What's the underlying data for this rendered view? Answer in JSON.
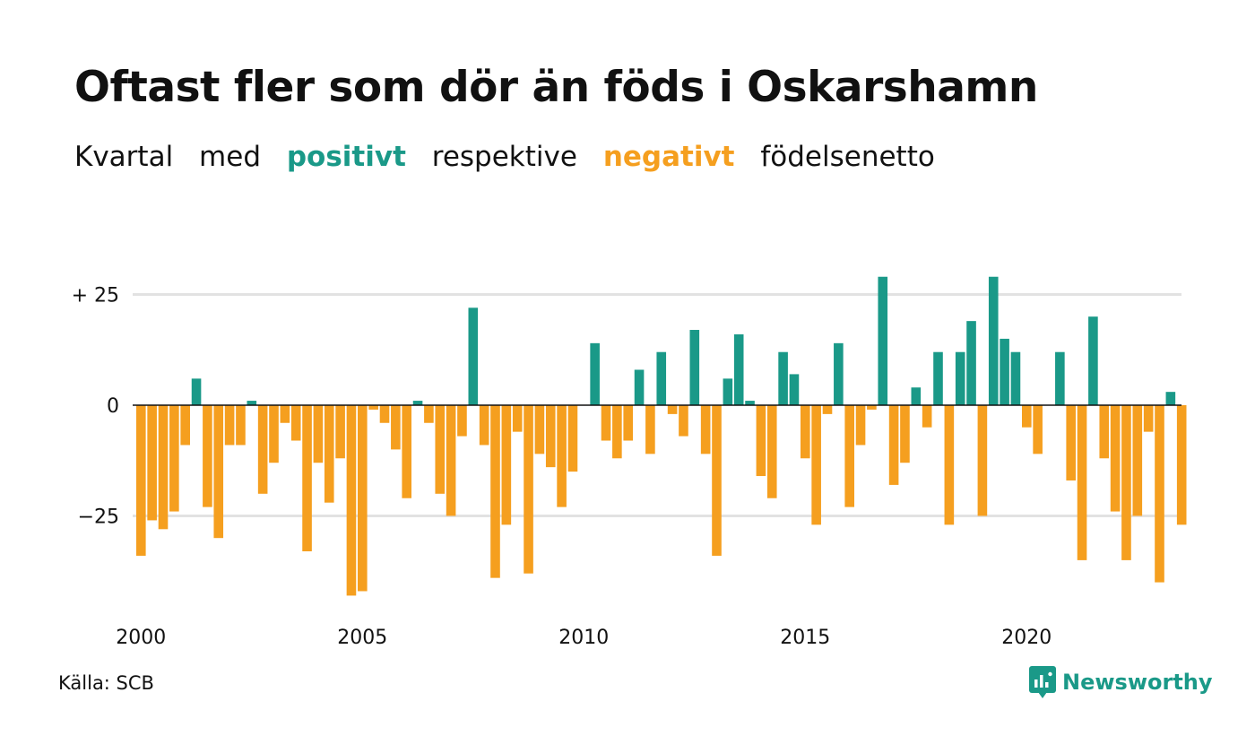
{
  "title": "Oftast fler som dör än föds i Oskarshamn",
  "subtitle": {
    "part1": "Kvartal",
    "part2": "med",
    "positive": "positivt",
    "part3": "respektive",
    "negative": "negativt",
    "part4": "födelsenetto"
  },
  "colors": {
    "positive": "#1a9988",
    "negative": "#f59f1f",
    "grid": "#e2e2e2",
    "text": "#111111"
  },
  "source": "Källa: SCB",
  "brand": {
    "name": "Newsworthy",
    "icon": "newsworthy-logo-icon"
  },
  "chart_data": {
    "type": "bar",
    "x_start": "2000-Q1",
    "x_ticks": [
      "2000",
      "2005",
      "2010",
      "2015",
      "2020"
    ],
    "y_ticks": [
      "+ 25",
      "0",
      "−25"
    ],
    "y_tick_values": [
      25,
      0,
      -25
    ],
    "ylim": [
      -44,
      29
    ],
    "grid": true,
    "values": [
      -34,
      -26,
      -28,
      -24,
      -9,
      6,
      -23,
      -30,
      -9,
      -9,
      1,
      -20,
      -13,
      -4,
      -8,
      -33,
      -13,
      -22,
      -12,
      -43,
      -42,
      -1,
      -4,
      -10,
      -21,
      1,
      -4,
      -20,
      -25,
      -7,
      22,
      -9,
      -39,
      -27,
      -6,
      -38,
      -11,
      -14,
      -23,
      -15,
      0,
      14,
      -8,
      -12,
      -8,
      8,
      -11,
      12,
      -2,
      -7,
      17,
      -11,
      -34,
      6,
      16,
      1,
      -16,
      -21,
      12,
      7,
      -12,
      -27,
      -2,
      14,
      -23,
      -9,
      -1,
      29,
      -18,
      -13,
      4,
      -5,
      12,
      -27,
      12,
      19,
      -25,
      29,
      15,
      12,
      -5,
      -11,
      0,
      12,
      -17,
      -35,
      20,
      -12,
      -24,
      -35,
      -25,
      -6,
      -40,
      3,
      -27
    ]
  }
}
